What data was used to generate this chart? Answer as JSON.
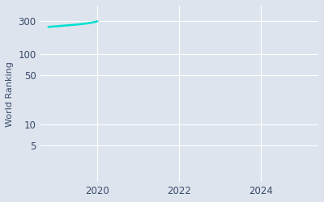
{
  "ylabel": "World Ranking",
  "xlabel": "",
  "x_data": [
    2018.8,
    2018.95,
    2019.1,
    2019.3,
    2019.5,
    2019.7,
    2019.85,
    2020.0
  ],
  "y_data": [
    248,
    252,
    256,
    262,
    268,
    276,
    285,
    298
  ],
  "line_color": "#00e0d0",
  "line_width": 1.8,
  "xlim": [
    2018.6,
    2025.4
  ],
  "ylim": [
    1.5,
    500
  ],
  "yticks": [
    5,
    10,
    50,
    100,
    300
  ],
  "ytick_labels": [
    "5",
    "10",
    "50",
    "100",
    "300"
  ],
  "xticks": [
    2020,
    2022,
    2024
  ],
  "xtick_labels": [
    "2020",
    "2022",
    "2024"
  ],
  "background_color": "#dde4ed",
  "plot_background": "#dde4ed",
  "grid_color": "#ffffff",
  "tick_color": "#3a4a6b",
  "label_fontsize": 8,
  "tick_fontsize": 8.5
}
